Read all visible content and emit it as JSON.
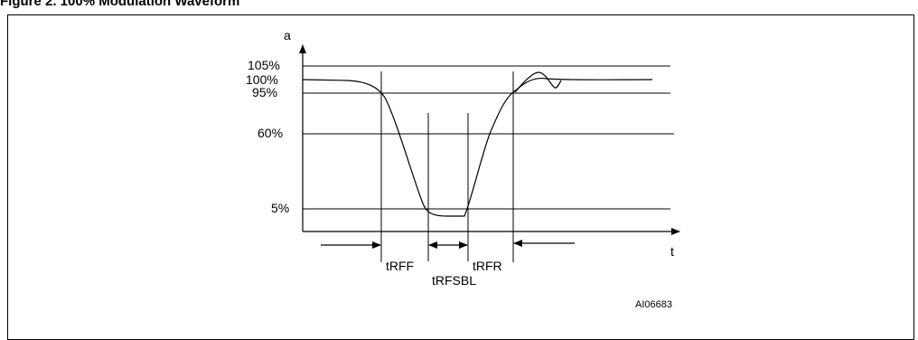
{
  "figure": {
    "title": "Figure 2.     100% Modulation Waveform"
  },
  "axes": {
    "y_label": "a",
    "x_label": "t"
  },
  "levels": [
    {
      "label": "105%",
      "key": "105"
    },
    {
      "label": "100%",
      "key": "100"
    },
    {
      "label": "95%",
      "key": "95"
    },
    {
      "label": "60%",
      "key": "60"
    },
    {
      "label": "5%",
      "key": "5"
    }
  ],
  "timing_labels": {
    "fall": "tRFF",
    "stay_below": "tRFSBL",
    "rise": "tRFR"
  },
  "figure_code": "AI06683"
}
